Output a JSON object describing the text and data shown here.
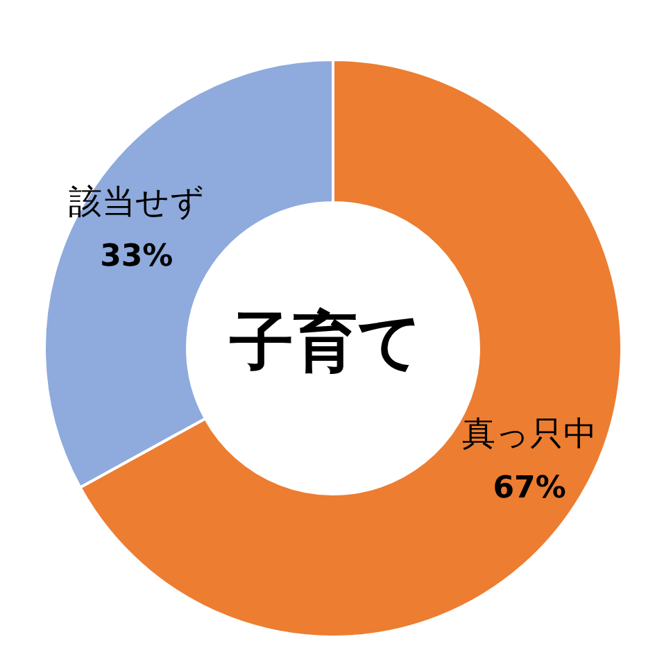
{
  "chart_data": {
    "type": "donut",
    "title": "子育て",
    "categories": [
      "真っ只中",
      "該当せず"
    ],
    "values": [
      67,
      33
    ],
    "value_labels": [
      "67%",
      "33%"
    ],
    "colors": [
      "#ed7d31",
      "#8faadc"
    ]
  }
}
